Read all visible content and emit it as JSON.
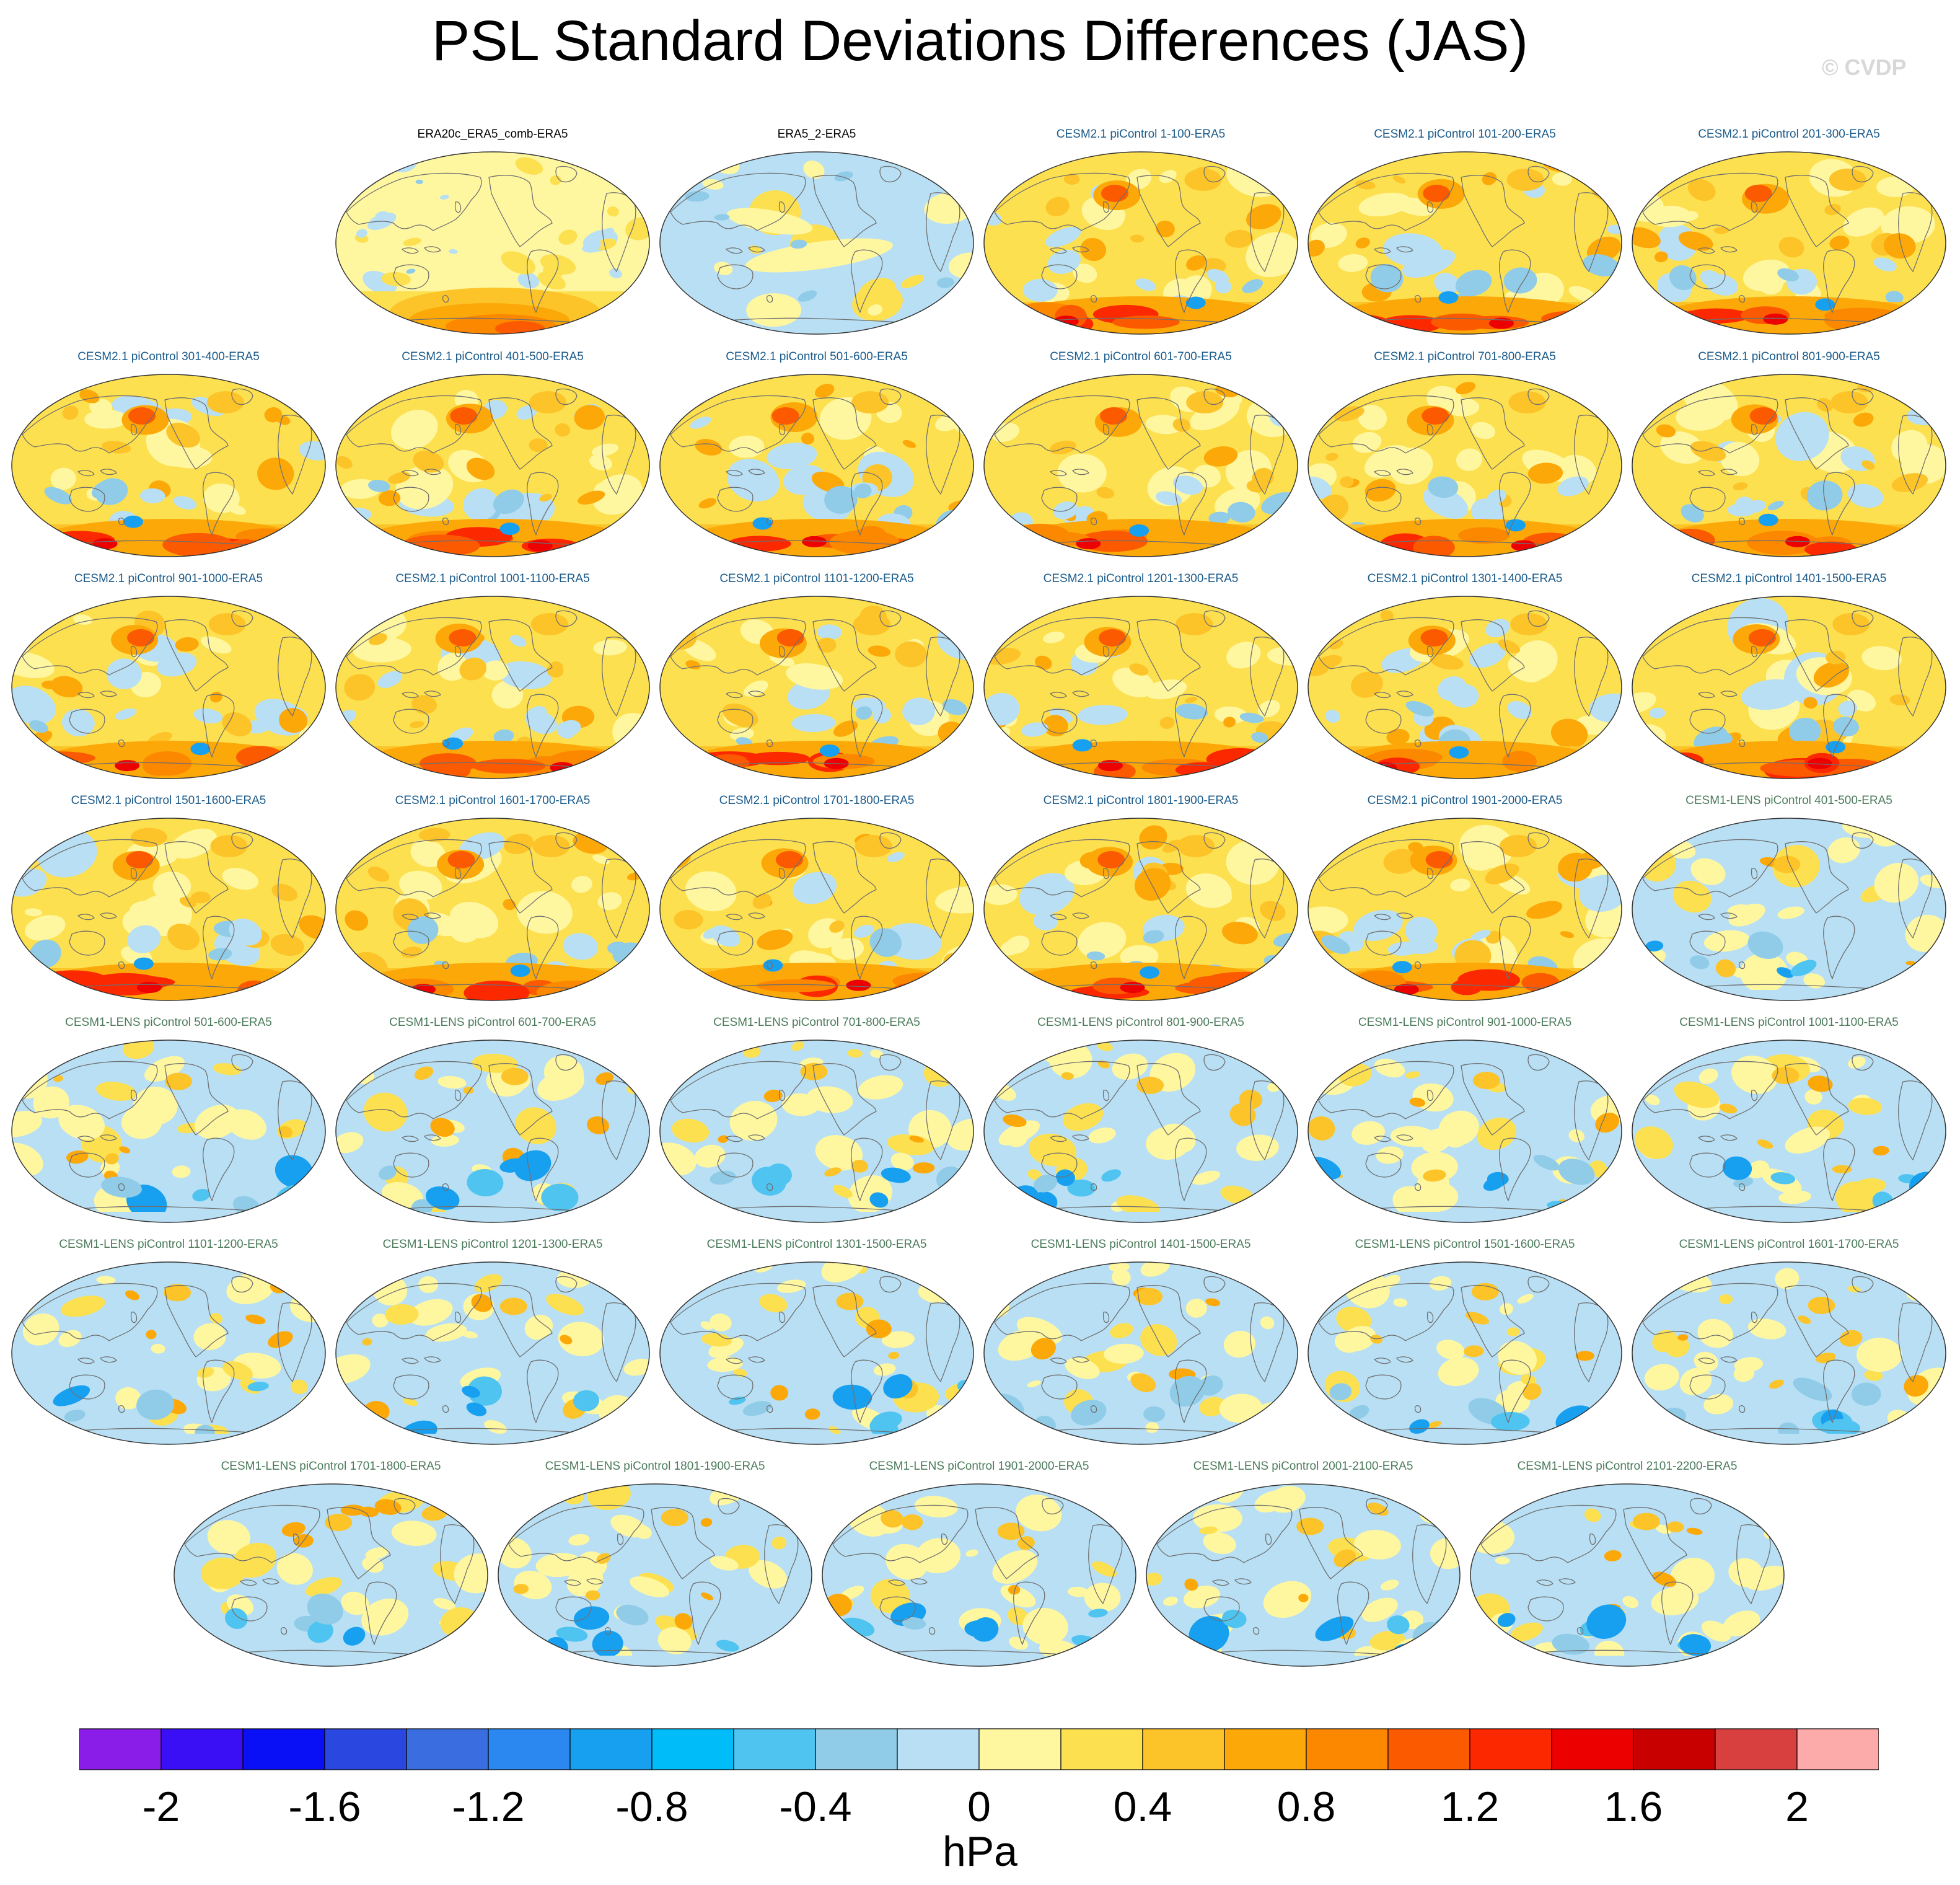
{
  "title": "PSL Standard Deviations Differences (JAS)",
  "watermark": "© CVDP",
  "colorbar": {
    "units": "hPa",
    "colors": [
      "#8a1ee8",
      "#3a0ff5",
      "#0a10f5",
      "#2a48e0",
      "#3a6ee0",
      "#2a88f0",
      "#18a0f0",
      "#00bcf8",
      "#50c4f0",
      "#90cce8",
      "#b8dff4",
      "#fff7a0",
      "#fde050",
      "#fcc428",
      "#fca808",
      "#fc8800",
      "#fc5a00",
      "#fc2800",
      "#ec0000",
      "#c80000",
      "#d84040",
      "#fcaaaa"
    ],
    "tick_labels": [
      "-2",
      "-1.6",
      "-1.2",
      "-0.8",
      "-0.4",
      "0",
      "0.4",
      "0.8",
      "1.2",
      "1.6",
      "2"
    ]
  },
  "panels": [
    {
      "title": "ERA20c_ERA5_comb-ERA5",
      "title_color": "#000000",
      "style": "obs1"
    },
    {
      "title": "ERA5_2-ERA5",
      "title_color": "#000000",
      "style": "obs2"
    },
    {
      "title": "CESM2.1 piControl 1-100-ERA5",
      "title_color": "#1a5a8a",
      "style": "cesm2"
    },
    {
      "title": "CESM2.1 piControl 101-200-ERA5",
      "title_color": "#1a5a8a",
      "style": "cesm2"
    },
    {
      "title": "CESM2.1 piControl 201-300-ERA5",
      "title_color": "#1a5a8a",
      "style": "cesm2"
    },
    {
      "title": "CESM2.1 piControl 301-400-ERA5",
      "title_color": "#1a5a8a",
      "style": "cesm2"
    },
    {
      "title": "CESM2.1 piControl 401-500-ERA5",
      "title_color": "#1a5a8a",
      "style": "cesm2"
    },
    {
      "title": "CESM2.1 piControl 501-600-ERA5",
      "title_color": "#1a5a8a",
      "style": "cesm2"
    },
    {
      "title": "CESM2.1 piControl 601-700-ERA5",
      "title_color": "#1a5a8a",
      "style": "cesm2"
    },
    {
      "title": "CESM2.1 piControl 701-800-ERA5",
      "title_color": "#1a5a8a",
      "style": "cesm2"
    },
    {
      "title": "CESM2.1 piControl 801-900-ERA5",
      "title_color": "#1a5a8a",
      "style": "cesm2"
    },
    {
      "title": "CESM2.1 piControl 901-1000-ERA5",
      "title_color": "#1a5a8a",
      "style": "cesm2"
    },
    {
      "title": "CESM2.1 piControl 1001-1100-ERA5",
      "title_color": "#1a5a8a",
      "style": "cesm2"
    },
    {
      "title": "CESM2.1 piControl 1101-1200-ERA5",
      "title_color": "#1a5a8a",
      "style": "cesm2"
    },
    {
      "title": "CESM2.1 piControl 1201-1300-ERA5",
      "title_color": "#1a5a8a",
      "style": "cesm2"
    },
    {
      "title": "CESM2.1 piControl 1301-1400-ERA5",
      "title_color": "#1a5a8a",
      "style": "cesm2"
    },
    {
      "title": "CESM2.1 piControl 1401-1500-ERA5",
      "title_color": "#1a5a8a",
      "style": "cesm2"
    },
    {
      "title": "CESM2.1 piControl 1501-1600-ERA5",
      "title_color": "#1a5a8a",
      "style": "cesm2"
    },
    {
      "title": "CESM2.1 piControl 1601-1700-ERA5",
      "title_color": "#1a5a8a",
      "style": "cesm2"
    },
    {
      "title": "CESM2.1 piControl 1701-1800-ERA5",
      "title_color": "#1a5a8a",
      "style": "cesm2"
    },
    {
      "title": "CESM2.1 piControl 1801-1900-ERA5",
      "title_color": "#1a5a8a",
      "style": "cesm2"
    },
    {
      "title": "CESM2.1 piControl 1901-2000-ERA5",
      "title_color": "#1a5a8a",
      "style": "cesm2"
    },
    {
      "title": "CESM1-LENS piControl 401-500-ERA5",
      "title_color": "#4a7a5a",
      "style": "cesm1"
    },
    {
      "title": "CESM1-LENS piControl 501-600-ERA5",
      "title_color": "#4a7a5a",
      "style": "cesm1"
    },
    {
      "title": "CESM1-LENS piControl 601-700-ERA5",
      "title_color": "#4a7a5a",
      "style": "cesm1"
    },
    {
      "title": "CESM1-LENS piControl 701-800-ERA5",
      "title_color": "#4a7a5a",
      "style": "cesm1"
    },
    {
      "title": "CESM1-LENS piControl 801-900-ERA5",
      "title_color": "#4a7a5a",
      "style": "cesm1"
    },
    {
      "title": "CESM1-LENS piControl 901-1000-ERA5",
      "title_color": "#4a7a5a",
      "style": "cesm1"
    },
    {
      "title": "CESM1-LENS piControl 1001-1100-ERA5",
      "title_color": "#4a7a5a",
      "style": "cesm1"
    },
    {
      "title": "CESM1-LENS piControl 1101-1200-ERA5",
      "title_color": "#4a7a5a",
      "style": "cesm1"
    },
    {
      "title": "CESM1-LENS piControl 1201-1300-ERA5",
      "title_color": "#4a7a5a",
      "style": "cesm1"
    },
    {
      "title": "CESM1-LENS piControl 1301-1500-ERA5",
      "title_color": "#4a7a5a",
      "style": "cesm1"
    },
    {
      "title": "CESM1-LENS piControl 1401-1500-ERA5",
      "title_color": "#4a7a5a",
      "style": "cesm1"
    },
    {
      "title": "CESM1-LENS piControl 1501-1600-ERA5",
      "title_color": "#4a7a5a",
      "style": "cesm1"
    },
    {
      "title": "CESM1-LENS piControl 1601-1700-ERA5",
      "title_color": "#4a7a5a",
      "style": "cesm1"
    },
    {
      "title": "CESM1-LENS piControl 1701-1800-ERA5",
      "title_color": "#4a7a5a",
      "style": "cesm1"
    },
    {
      "title": "CESM1-LENS piControl 1801-1900-ERA5",
      "title_color": "#4a7a5a",
      "style": "cesm1"
    },
    {
      "title": "CESM1-LENS piControl 1901-2000-ERA5",
      "title_color": "#4a7a5a",
      "style": "cesm1"
    },
    {
      "title": "CESM1-LENS piControl 2001-2100-ERA5",
      "title_color": "#4a7a5a",
      "style": "cesm1"
    },
    {
      "title": "CESM1-LENS piControl 2101-2200-ERA5",
      "title_color": "#4a7a5a",
      "style": "cesm1"
    }
  ]
}
